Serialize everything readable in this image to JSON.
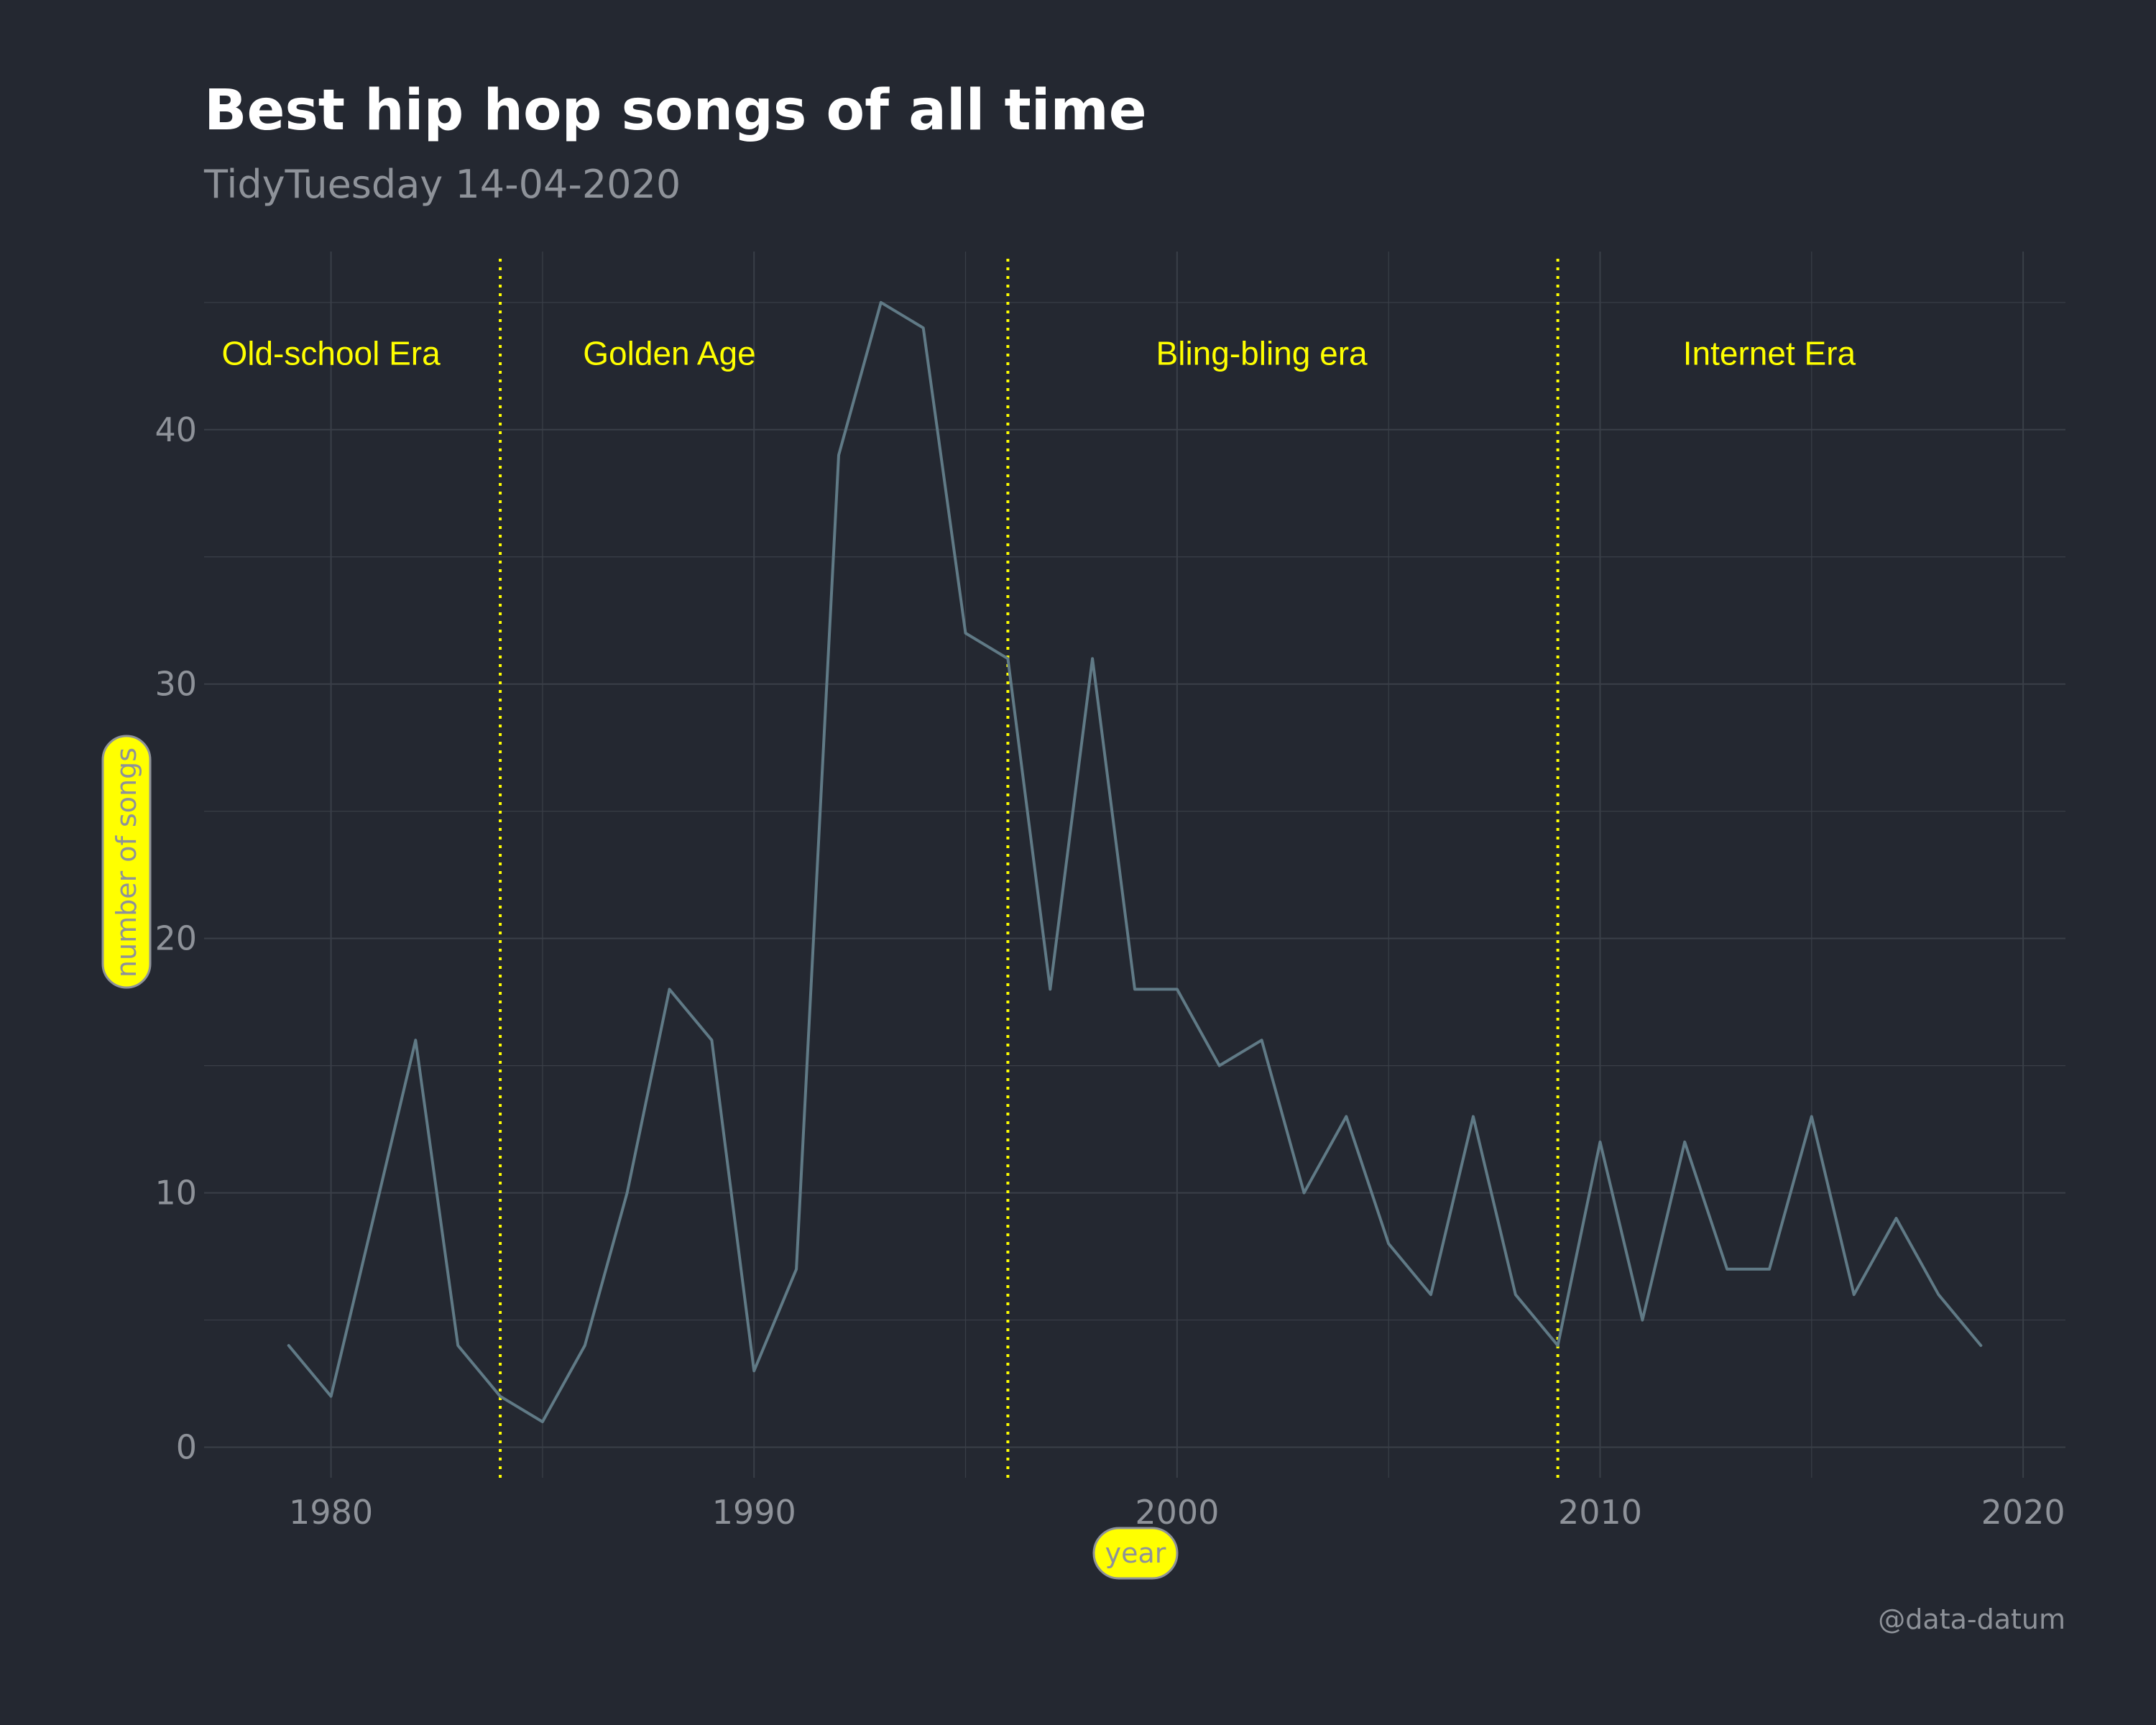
{
  "chart_data": {
    "type": "line",
    "title": "Best hip hop songs of all time",
    "subtitle": "TidyTuesday 14-04-2020",
    "xlabel": "year",
    "ylabel": "number of songs",
    "caption": "@data-datum",
    "xlim": [
      1977,
      2021
    ],
    "ylim": [
      -1.2,
      47
    ],
    "x_ticks": [
      1980,
      1990,
      2000,
      2010,
      2020
    ],
    "y_ticks": [
      0,
      10,
      20,
      30,
      40
    ],
    "grid": true,
    "series": [
      {
        "x": [
          1979,
          1980,
          1981,
          1982,
          1983,
          1984,
          1985,
          1986,
          1987,
          1988,
          1989,
          1990,
          1991,
          1992,
          1993,
          1994,
          1995,
          1996,
          1997,
          1998,
          1999,
          2000,
          2001,
          2002,
          2003,
          2004,
          2005,
          2006,
          2007,
          2008,
          2009,
          2010,
          2011,
          2012,
          2013,
          2014,
          2015,
          2016,
          2017,
          2018,
          2019
        ],
        "values": [
          4,
          2,
          9,
          16,
          4,
          2,
          1,
          4,
          10,
          18,
          16,
          3,
          7,
          39,
          45,
          44,
          32,
          31,
          18,
          31,
          18,
          18,
          15,
          16,
          10,
          13,
          8,
          6,
          13,
          6,
          4,
          12,
          5,
          12,
          7,
          7,
          13,
          6,
          9,
          6,
          4
        ]
      }
    ],
    "era_dividers": [
      1984,
      1996,
      2009
    ],
    "era_labels": [
      {
        "text": "Old-school Era",
        "x": 1980,
        "y": 43
      },
      {
        "text": "Golden Age",
        "x": 1988,
        "y": 43
      },
      {
        "text": "Bling-bling era",
        "x": 2002,
        "y": 43
      },
      {
        "text": "Internet Era",
        "x": 2014,
        "y": 43
      }
    ],
    "colors": {
      "background": "#242831",
      "line": "#607a86",
      "grid": "#3a3f48",
      "era": "#ffff00",
      "text_muted": "#8e9299",
      "title": "#ffffff",
      "axis_title_box": "#ffff00"
    }
  }
}
